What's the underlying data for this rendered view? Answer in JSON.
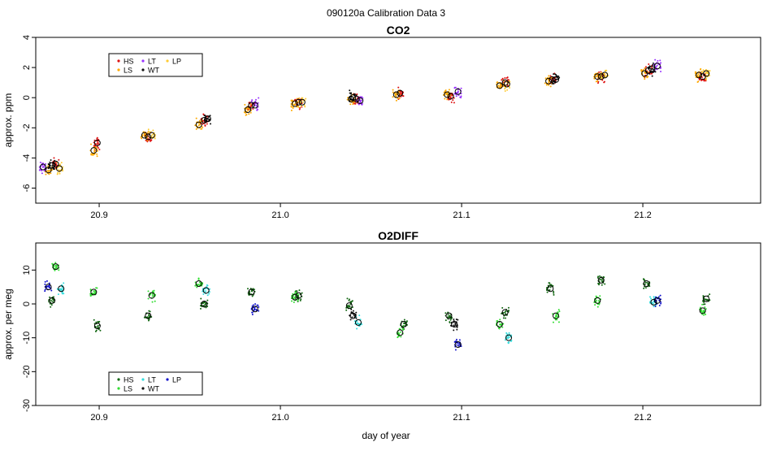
{
  "figure": {
    "title": "090120a   Calibration Data 3",
    "xlabel": "day of year"
  },
  "chart_data": [
    {
      "type": "scatter",
      "title": "CO2",
      "xlabel": "",
      "ylabel": "approx. ppm",
      "xlim": [
        20.865,
        21.265
      ],
      "ylim": [
        -7,
        4
      ],
      "xticks": [
        20.9,
        21.0,
        21.1,
        21.2
      ],
      "xtick_labels": [
        "20.9",
        "21.0",
        "21.1",
        "21.2"
      ],
      "yticks": [
        -6,
        -4,
        -2,
        0,
        2,
        4
      ],
      "ytick_labels": [
        "-6",
        "-4",
        "-2",
        "0",
        "2",
        "4"
      ],
      "grid": false,
      "legend": {
        "position": "top-left",
        "entries": [
          {
            "label": "HS",
            "color": "#dd1111"
          },
          {
            "label": "LS",
            "color": "#ffaa00"
          },
          {
            "label": "LT",
            "color": "#9933ff"
          },
          {
            "label": "WT",
            "color": "#111111"
          },
          {
            "label": "LP",
            "color": "#ffcc33"
          }
        ]
      },
      "series": [
        {
          "name": "HS",
          "color": "#dd1111",
          "points": [
            {
              "x": 20.876,
              "y": -4.4
            },
            {
              "x": 20.899,
              "y": -3.0
            },
            {
              "x": 20.927,
              "y": -2.6
            },
            {
              "x": 20.958,
              "y": -1.5
            },
            {
              "x": 20.984,
              "y": -0.5
            },
            {
              "x": 21.01,
              "y": -0.3
            },
            {
              "x": 21.042,
              "y": -0.1
            },
            {
              "x": 21.066,
              "y": 0.3
            },
            {
              "x": 21.094,
              "y": 0.1
            },
            {
              "x": 21.124,
              "y": 1.0
            },
            {
              "x": 21.15,
              "y": 1.2
            },
            {
              "x": 21.177,
              "y": 1.4
            },
            {
              "x": 21.203,
              "y": 1.8
            },
            {
              "x": 21.233,
              "y": 1.4
            }
          ]
        },
        {
          "name": "LS",
          "color": "#ffaa00",
          "points": [
            {
              "x": 20.872,
              "y": -4.8
            },
            {
              "x": 20.897,
              "y": -3.5
            },
            {
              "x": 20.925,
              "y": -2.5
            },
            {
              "x": 20.955,
              "y": -1.8
            },
            {
              "x": 20.982,
              "y": -0.8
            },
            {
              "x": 21.008,
              "y": -0.4
            },
            {
              "x": 21.039,
              "y": -0.1
            },
            {
              "x": 21.064,
              "y": 0.2
            },
            {
              "x": 21.092,
              "y": 0.2
            },
            {
              "x": 21.121,
              "y": 0.8
            },
            {
              "x": 21.148,
              "y": 1.1
            },
            {
              "x": 21.175,
              "y": 1.4
            },
            {
              "x": 21.201,
              "y": 1.6
            },
            {
              "x": 21.231,
              "y": 1.5
            }
          ]
        },
        {
          "name": "LT",
          "color": "#9933ff",
          "points": [
            {
              "x": 20.869,
              "y": -4.6
            },
            {
              "x": 20.986,
              "y": -0.5
            },
            {
              "x": 21.044,
              "y": -0.2
            },
            {
              "x": 21.098,
              "y": 0.4
            },
            {
              "x": 21.208,
              "y": 2.1
            }
          ]
        },
        {
          "name": "WT",
          "color": "#111111",
          "points": [
            {
              "x": 20.874,
              "y": -4.5
            },
            {
              "x": 20.96,
              "y": -1.4
            },
            {
              "x": 21.04,
              "y": 0.0
            },
            {
              "x": 21.152,
              "y": 1.2
            },
            {
              "x": 21.205,
              "y": 1.9
            }
          ]
        },
        {
          "name": "LP",
          "color": "#ffcc33",
          "points": [
            {
              "x": 20.878,
              "y": -4.7
            },
            {
              "x": 20.929,
              "y": -2.5
            },
            {
              "x": 21.012,
              "y": -0.3
            },
            {
              "x": 21.125,
              "y": 0.9
            },
            {
              "x": 21.179,
              "y": 1.5
            },
            {
              "x": 21.235,
              "y": 1.6
            }
          ]
        }
      ]
    },
    {
      "type": "scatter",
      "title": "O2DIFF",
      "xlabel": "day of year",
      "ylabel": "approx. per meg",
      "xlim": [
        20.865,
        21.265
      ],
      "ylim": [
        -30,
        18
      ],
      "xticks": [
        20.9,
        21.0,
        21.1,
        21.2
      ],
      "xtick_labels": [
        "20.9",
        "21.0",
        "21.1",
        "21.2"
      ],
      "yticks": [
        -30,
        -20,
        -10,
        0,
        10
      ],
      "ytick_labels": [
        "-30",
        "-20",
        "-10",
        "0",
        "10"
      ],
      "grid": false,
      "legend": {
        "position": "bottom-left",
        "entries": [
          {
            "label": "HS",
            "color": "#116611"
          },
          {
            "label": "LS",
            "color": "#33dd33"
          },
          {
            "label": "LT",
            "color": "#33dddd"
          },
          {
            "label": "WT",
            "color": "#111111"
          },
          {
            "label": "LP",
            "color": "#1111cc"
          }
        ]
      },
      "series": [
        {
          "name": "HS",
          "color": "#116611",
          "points": [
            {
              "x": 20.874,
              "y": 1.0
            },
            {
              "x": 20.899,
              "y": -6.5
            },
            {
              "x": 20.927,
              "y": -3.5
            },
            {
              "x": 20.958,
              "y": 0.0
            },
            {
              "x": 20.984,
              "y": 3.5
            },
            {
              "x": 21.01,
              "y": 2.5
            },
            {
              "x": 21.038,
              "y": -0.5
            },
            {
              "x": 21.068,
              "y": -6.0
            },
            {
              "x": 21.093,
              "y": -3.5
            },
            {
              "x": 21.124,
              "y": -2.5
            },
            {
              "x": 21.149,
              "y": 4.5
            },
            {
              "x": 21.177,
              "y": 7.0
            },
            {
              "x": 21.202,
              "y": 6.0
            },
            {
              "x": 21.235,
              "y": 1.5
            }
          ]
        },
        {
          "name": "LS",
          "color": "#33dd33",
          "points": [
            {
              "x": 20.876,
              "y": 11.0
            },
            {
              "x": 20.897,
              "y": 3.5
            },
            {
              "x": 20.929,
              "y": 2.5
            },
            {
              "x": 20.955,
              "y": 6.0
            },
            {
              "x": 21.008,
              "y": 2.0
            },
            {
              "x": 21.066,
              "y": -8.5
            },
            {
              "x": 21.121,
              "y": -6.0
            },
            {
              "x": 21.152,
              "y": -3.5
            },
            {
              "x": 21.175,
              "y": 1.0
            },
            {
              "x": 21.233,
              "y": -2.0
            }
          ]
        },
        {
          "name": "LT",
          "color": "#33dddd",
          "points": [
            {
              "x": 20.879,
              "y": 4.5
            },
            {
              "x": 20.959,
              "y": 4.0
            },
            {
              "x": 21.043,
              "y": -5.5
            },
            {
              "x": 21.126,
              "y": -10.0
            },
            {
              "x": 21.206,
              "y": 0.5
            }
          ]
        },
        {
          "name": "WT",
          "color": "#111111",
          "points": [
            {
              "x": 21.04,
              "y": -3.5
            },
            {
              "x": 21.096,
              "y": -6.0
            }
          ]
        },
        {
          "name": "LP",
          "color": "#1111cc",
          "points": [
            {
              "x": 20.872,
              "y": 5.0
            },
            {
              "x": 20.986,
              "y": -1.5
            },
            {
              "x": 21.098,
              "y": -12.0
            },
            {
              "x": 21.208,
              "y": 1.0
            }
          ]
        }
      ]
    }
  ]
}
